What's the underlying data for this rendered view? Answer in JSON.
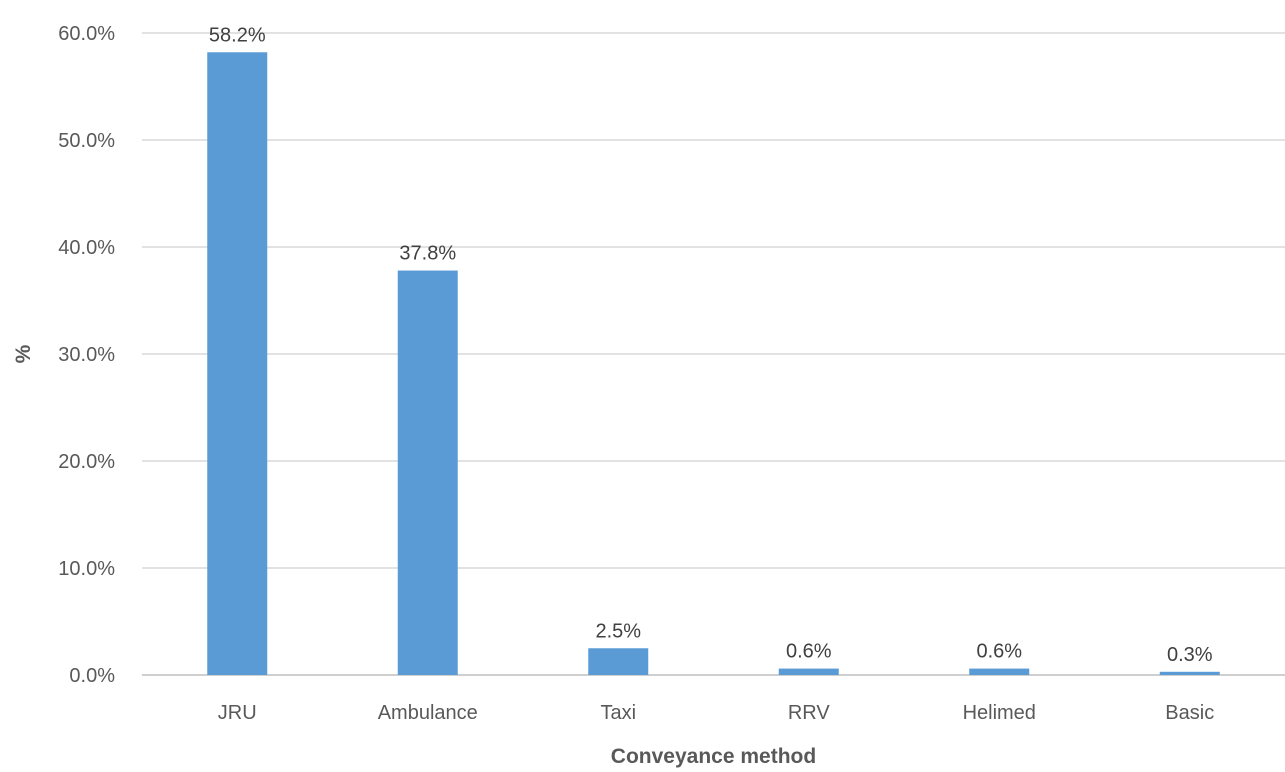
{
  "chart_data": {
    "type": "bar",
    "categories": [
      "JRU",
      "Ambulance",
      "Taxi",
      "RRV",
      "Helimed",
      "Basic"
    ],
    "values": [
      58.2,
      37.8,
      2.5,
      0.6,
      0.6,
      0.3
    ],
    "data_labels": [
      "58.2%",
      "37.8%",
      "2.5%",
      "0.6%",
      "0.6%",
      "0.3%"
    ],
    "xlabel": "Conveyance method",
    "ylabel": "%",
    "ylim": [
      0,
      60
    ],
    "yticks": [
      0,
      10,
      20,
      30,
      40,
      50,
      60
    ],
    "ytick_labels": [
      "0.0%",
      "10.0%",
      "20.0%",
      "30.0%",
      "40.0%",
      "50.0%",
      "60.0%"
    ],
    "grid": true,
    "legend": "none",
    "bar_color": "#5b9bd5"
  }
}
